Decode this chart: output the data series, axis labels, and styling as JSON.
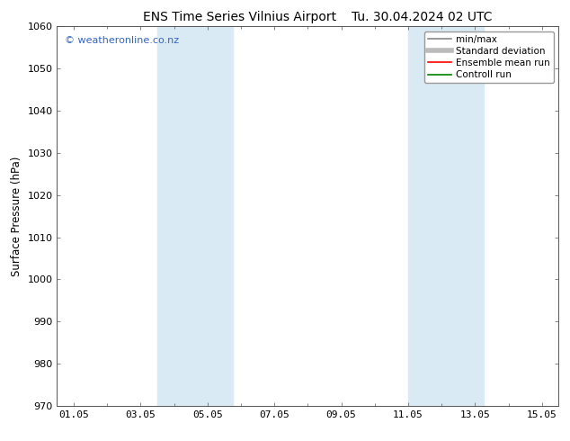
{
  "title_left": "ENS Time Series Vilnius Airport",
  "title_right": "Tu. 30.04.2024 02 UTC",
  "ylabel": "Surface Pressure (hPa)",
  "ylim": [
    970,
    1060
  ],
  "yticks": [
    970,
    980,
    990,
    1000,
    1010,
    1020,
    1030,
    1040,
    1050,
    1060
  ],
  "xlim": [
    0.5,
    15.5
  ],
  "xtick_labels": [
    "01.05",
    "03.05",
    "05.05",
    "07.05",
    "09.05",
    "11.05",
    "13.05",
    "15.05"
  ],
  "xtick_days": [
    1,
    3,
    5,
    7,
    9,
    11,
    13,
    15
  ],
  "all_days": [
    1,
    2,
    3,
    4,
    5,
    6,
    7,
    8,
    9,
    10,
    11,
    12,
    13,
    14,
    15
  ],
  "shaded_regions": [
    {
      "x0_day": 3.5,
      "x1_day": 4.5
    },
    {
      "x0_day": 4.5,
      "x1_day": 5.7
    },
    {
      "x0_day": 11.0,
      "x1_day": 12.0
    },
    {
      "x0_day": 12.0,
      "x1_day": 13.2
    }
  ],
  "shade_color": "#daeaf5",
  "watermark": "© weatheronline.co.nz",
  "watermark_color": "#3366bb",
  "legend_items": [
    {
      "label": "min/max",
      "color": "#888888",
      "linestyle": "-",
      "linewidth": 1.2
    },
    {
      "label": "Standard deviation",
      "color": "#bbbbbb",
      "linestyle": "-",
      "linewidth": 4
    },
    {
      "label": "Ensemble mean run",
      "color": "#ff0000",
      "linestyle": "-",
      "linewidth": 1.2
    },
    {
      "label": "Controll run",
      "color": "#008000",
      "linestyle": "-",
      "linewidth": 1.2
    }
  ],
  "background_color": "#ffffff",
  "plot_bg_color": "#ffffff",
  "title_fontsize": 10,
  "tick_fontsize": 8,
  "ylabel_fontsize": 8.5,
  "watermark_fontsize": 8,
  "legend_fontsize": 7.5
}
